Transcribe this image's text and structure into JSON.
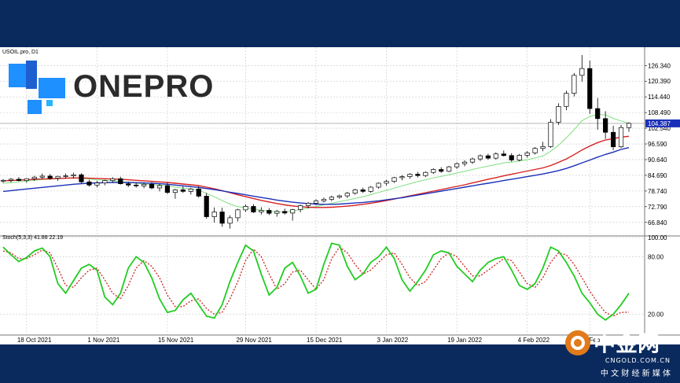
{
  "header": {
    "symbol_label": "USOIL.pro, D1",
    "stoch_label": "Stoch(5,3,3) 41.88 22.19"
  },
  "branding": {
    "logo_text": "ONEPRO",
    "watermark_text": "中金网",
    "watermark_sub": "CNGOLD.COM.CN",
    "watermark_cn": "中 文 财 经 新 媒 体"
  },
  "colors": {
    "background": "#0a2a5e",
    "ma_fast": "#7fe07f",
    "ma_mid": "#d62020",
    "ma_slow": "#1a2fb8",
    "stoch_main": "#22cc22",
    "stoch_signal": "#cc2222",
    "price_line": "#1a2fb8",
    "logo_blue": "#1e90ff",
    "logo_dark": "#2b2b2b"
  },
  "chart_data": [
    {
      "type": "candlestick",
      "title": "USOIL.pro, D1",
      "x": [
        "18 Oct 2021",
        "1 Nov 2021",
        "15 Nov 2021",
        "29 Nov 2021",
        "15 Dec 2021",
        "3 Jan 2022",
        "19 Jan 2022",
        "4 Feb 2022",
        "22 Feb"
      ],
      "ylim": [
        62.9,
        130.3
      ],
      "y_ticks": [
        "126.340",
        "120.390",
        "114.440",
        "108.490",
        "102.540",
        "96.590",
        "90.640",
        "84.690",
        "78.740",
        "72.790",
        "66.840"
      ],
      "current_price": "104.387",
      "grid": true,
      "candles": [
        [
          82.5,
          83.3,
          81.8,
          82.8
        ],
        [
          82.8,
          83.7,
          82.0,
          83.2
        ],
        [
          83.2,
          84.0,
          82.4,
          82.7
        ],
        [
          82.7,
          83.6,
          81.9,
          83.4
        ],
        [
          83.4,
          84.5,
          82.6,
          84.0
        ],
        [
          84.0,
          85.4,
          83.3,
          84.4
        ],
        [
          84.4,
          85.2,
          83.0,
          83.6
        ],
        [
          83.6,
          84.5,
          82.6,
          84.3
        ],
        [
          84.3,
          85.4,
          83.4,
          84.5
        ],
        [
          84.5,
          85.7,
          83.5,
          84.9
        ],
        [
          84.9,
          85.5,
          81.5,
          82.2
        ],
        [
          82.2,
          83.0,
          80.4,
          81.0
        ],
        [
          81.0,
          82.6,
          80.1,
          81.8
        ],
        [
          81.8,
          83.0,
          80.9,
          82.7
        ],
        [
          82.7,
          84.0,
          81.9,
          83.4
        ],
        [
          83.4,
          84.2,
          81.2,
          81.5
        ],
        [
          81.5,
          82.3,
          80.2,
          81.0
        ],
        [
          81.0,
          82.0,
          80.0,
          80.7
        ],
        [
          80.7,
          81.8,
          79.8,
          81.3
        ],
        [
          81.3,
          82.1,
          79.4,
          79.9
        ],
        [
          79.9,
          81.5,
          78.6,
          80.8
        ],
        [
          80.8,
          81.9,
          77.6,
          78.2
        ],
        [
          78.2,
          79.6,
          75.8,
          79.2
        ],
        [
          79.2,
          80.5,
          78.0,
          78.6
        ],
        [
          78.6,
          80.0,
          77.4,
          79.5
        ],
        [
          79.5,
          80.6,
          76.2,
          76.8
        ],
        [
          76.8,
          78.0,
          68.2,
          69.0
        ],
        [
          69.0,
          72.5,
          66.8,
          70.8
        ],
        [
          70.8,
          72.4,
          65.2,
          66.5
        ],
        [
          66.5,
          69.5,
          64.5,
          68.6
        ],
        [
          68.6,
          72.0,
          67.2,
          71.6
        ],
        [
          71.6,
          73.6,
          70.8,
          72.9
        ],
        [
          72.9,
          73.8,
          70.4,
          70.8
        ],
        [
          70.8,
          72.6,
          69.8,
          71.4
        ],
        [
          71.4,
          72.3,
          69.6,
          70.3
        ],
        [
          70.3,
          71.6,
          69.0,
          71.0
        ],
        [
          71.0,
          72.1,
          69.8,
          70.4
        ],
        [
          70.4,
          72.0,
          67.5,
          71.7
        ],
        [
          71.7,
          73.6,
          70.6,
          73.2
        ],
        [
          73.2,
          74.6,
          72.2,
          74.1
        ],
        [
          74.1,
          75.6,
          73.4,
          75.0
        ],
        [
          75.0,
          76.3,
          74.4,
          75.6
        ],
        [
          75.6,
          77.0,
          74.9,
          76.4
        ],
        [
          76.4,
          77.4,
          75.8,
          76.9
        ],
        [
          76.9,
          78.4,
          76.1,
          77.9
        ],
        [
          77.9,
          79.6,
          77.3,
          79.2
        ],
        [
          79.2,
          80.0,
          78.0,
          78.6
        ],
        [
          78.6,
          80.6,
          78.1,
          80.2
        ],
        [
          80.2,
          82.0,
          79.6,
          81.7
        ],
        [
          81.7,
          83.0,
          80.8,
          82.4
        ],
        [
          82.4,
          84.1,
          81.8,
          83.8
        ],
        [
          83.8,
          84.8,
          82.8,
          84.2
        ],
        [
          84.2,
          85.5,
          83.4,
          85.1
        ],
        [
          85.1,
          86.0,
          83.9,
          84.6
        ],
        [
          84.6,
          86.2,
          84.0,
          85.8
        ],
        [
          85.8,
          87.4,
          85.2,
          86.9
        ],
        [
          86.9,
          87.8,
          85.6,
          86.2
        ],
        [
          86.2,
          88.3,
          85.9,
          87.9
        ],
        [
          87.9,
          89.6,
          87.1,
          89.1
        ],
        [
          89.1,
          90.4,
          88.1,
          89.7
        ],
        [
          89.7,
          91.4,
          89.0,
          90.9
        ],
        [
          90.9,
          92.6,
          90.1,
          92.1
        ],
        [
          92.1,
          92.9,
          90.6,
          91.2
        ],
        [
          91.2,
          93.4,
          90.6,
          92.8
        ],
        [
          92.8,
          94.1,
          91.8,
          92.2
        ],
        [
          92.2,
          93.1,
          89.8,
          90.5
        ],
        [
          90.5,
          92.8,
          90.0,
          92.3
        ],
        [
          92.3,
          93.9,
          91.4,
          93.2
        ],
        [
          93.2,
          95.4,
          92.6,
          94.9
        ],
        [
          94.9,
          97.4,
          93.8,
          95.6
        ],
        [
          95.6,
          106.0,
          95.1,
          104.8
        ],
        [
          104.8,
          112.0,
          103.8,
          110.8
        ],
        [
          110.8,
          116.8,
          109.4,
          115.8
        ],
        [
          115.8,
          123.5,
          114.6,
          122.6
        ],
        [
          122.6,
          130.3,
          120.2,
          125.2
        ],
        [
          125.2,
          128.2,
          108.0,
          110.0
        ],
        [
          110.0,
          114.0,
          102.0,
          106.2
        ],
        [
          106.2,
          109.0,
          98.5,
          101.0
        ],
        [
          101.0,
          103.5,
          94.2,
          95.5
        ],
        [
          95.5,
          103.8,
          95.0,
          102.8
        ],
        [
          102.8,
          104.8,
          101.2,
          104.4
        ]
      ]
    },
    {
      "type": "line",
      "name": "moving-averages",
      "series": [
        {
          "color": "#7fe07f",
          "values": [
            81.7,
            81.9,
            82.2,
            82.5,
            82.8,
            83.1,
            83.2,
            83.4,
            83.6,
            83.8,
            83.6,
            83.3,
            83.0,
            82.8,
            82.6,
            82.4,
            82.0,
            81.7,
            81.4,
            81.2,
            81.0,
            80.6,
            80.2,
            79.8,
            79.5,
            79.1,
            77.8,
            76.6,
            75.1,
            73.8,
            72.8,
            72.4,
            71.9,
            71.5,
            71.1,
            70.8,
            70.9,
            71.2,
            71.7,
            72.3,
            72.9,
            73.5,
            74.1,
            74.7,
            75.3,
            75.9,
            76.6,
            77.4,
            78.2,
            79.0,
            79.8,
            80.7,
            81.5,
            82.3,
            83.0,
            83.7,
            84.3,
            84.9,
            85.6,
            86.2,
            86.9,
            87.6,
            88.2,
            88.8,
            89.4,
            89.7,
            90.1,
            90.6,
            91.3,
            92.0,
            93.8,
            96.1,
            98.9,
            102.0,
            105.4,
            107.0,
            107.8,
            107.6,
            106.3,
            105.3,
            104.4
          ]
        },
        {
          "color": "#d62020",
          "values": [
            82.6,
            82.7,
            82.9,
            83.0,
            83.2,
            83.3,
            83.4,
            83.5,
            83.6,
            83.7,
            83.7,
            83.6,
            83.5,
            83.4,
            83.3,
            83.2,
            83.0,
            82.8,
            82.6,
            82.4,
            82.2,
            82.0,
            81.7,
            81.4,
            81.1,
            80.8,
            80.2,
            79.6,
            78.9,
            78.1,
            77.3,
            76.6,
            75.9,
            75.2,
            74.6,
            74.0,
            73.5,
            73.1,
            72.8,
            72.6,
            72.5,
            72.5,
            72.6,
            72.8,
            73.0,
            73.3,
            73.7,
            74.1,
            74.6,
            75.1,
            75.7,
            76.3,
            76.9,
            77.5,
            78.1,
            78.7,
            79.3,
            79.9,
            80.5,
            81.1,
            81.8,
            82.5,
            83.2,
            83.8,
            84.5,
            85.1,
            85.7,
            86.3,
            86.9,
            87.5,
            88.4,
            89.6,
            90.9,
            92.5,
            94.3,
            95.8,
            97.1,
            98.1,
            98.6,
            99.2,
            99.5
          ]
        },
        {
          "color": "#1a2fb8",
          "values": [
            78.6,
            78.9,
            79.2,
            79.5,
            79.8,
            80.1,
            80.4,
            80.7,
            81.0,
            81.3,
            81.5,
            81.7,
            81.8,
            81.9,
            82.0,
            82.0,
            82.0,
            81.9,
            81.8,
            81.7,
            81.5,
            81.3,
            81.0,
            80.7,
            80.4,
            80.1,
            79.7,
            79.3,
            78.8,
            78.3,
            77.8,
            77.3,
            76.8,
            76.3,
            75.8,
            75.3,
            74.9,
            74.5,
            74.2,
            74.0,
            73.8,
            73.7,
            73.7,
            73.8,
            74.0,
            74.2,
            74.4,
            74.7,
            75.0,
            75.4,
            75.8,
            76.2,
            76.7,
            77.2,
            77.7,
            78.2,
            78.7,
            79.2,
            79.7,
            80.2,
            80.7,
            81.2,
            81.7,
            82.2,
            82.7,
            83.2,
            83.7,
            84.2,
            84.7,
            85.2,
            85.8,
            86.5,
            87.3,
            88.3,
            89.4,
            90.5,
            91.6,
            92.6,
            93.5,
            94.5,
            95.2
          ]
        }
      ]
    },
    {
      "type": "line",
      "title": "Stoch(5,3,3) 41.88 22.19",
      "ylim": [
        0,
        100
      ],
      "y_ticks": [
        "100.00",
        "80.00",
        "20.00"
      ],
      "series": [
        {
          "color": "#22cc22",
          "values": [
            90,
            82,
            75,
            79,
            86,
            89,
            80,
            52,
            42,
            55,
            68,
            72,
            66,
            38,
            30,
            42,
            68,
            80,
            74,
            58,
            36,
            22,
            24,
            35,
            42,
            30,
            18,
            16,
            30,
            54,
            74,
            92,
            86,
            62,
            40,
            48,
            68,
            74,
            60,
            42,
            46,
            72,
            94,
            92,
            70,
            56,
            62,
            74,
            80,
            90,
            78,
            56,
            44,
            54,
            66,
            82,
            86,
            84,
            70,
            62,
            54,
            66,
            74,
            78,
            80,
            66,
            50,
            46,
            52,
            68,
            90,
            86,
            74,
            60,
            42,
            32,
            20,
            14,
            20,
            30,
            41.88
          ]
        },
        {
          "color": "#cc2222",
          "values": [
            86,
            84,
            78,
            78,
            82,
            87,
            84,
            68,
            50,
            48,
            58,
            66,
            68,
            56,
            42,
            36,
            50,
            68,
            76,
            70,
            58,
            40,
            28,
            28,
            34,
            36,
            26,
            20,
            22,
            36,
            54,
            76,
            88,
            80,
            62,
            46,
            52,
            64,
            66,
            56,
            46,
            56,
            78,
            90,
            84,
            72,
            62,
            66,
            74,
            82,
            84,
            72,
            58,
            50,
            54,
            66,
            78,
            84,
            80,
            70,
            60,
            60,
            66,
            72,
            78,
            76,
            64,
            52,
            48,
            58,
            74,
            84,
            82,
            72,
            58,
            44,
            32,
            22,
            18,
            22,
            22.19
          ]
        }
      ]
    }
  ]
}
